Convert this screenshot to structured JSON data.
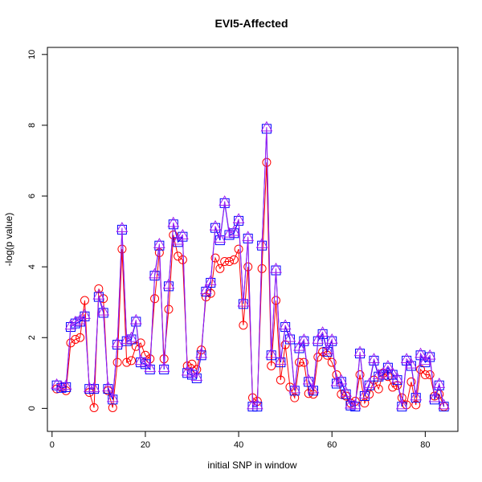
{
  "chart_data": {
    "type": "line",
    "title": "EVI5-Affected",
    "xlabel": "initial SNP in window",
    "ylabel": "-log(p value)",
    "xlim": [
      -1,
      87
    ],
    "ylim": [
      -0.65,
      10.2
    ],
    "xticks": [
      "0",
      "20",
      "40",
      "60",
      "80"
    ],
    "yticks": [
      "0",
      "2",
      "4",
      "6",
      "8",
      "10"
    ],
    "grid": false,
    "x": [
      1,
      2,
      3,
      4,
      5,
      6,
      7,
      8,
      9,
      10,
      11,
      12,
      13,
      14,
      15,
      16,
      17,
      18,
      19,
      20,
      21,
      22,
      23,
      24,
      25,
      26,
      27,
      28,
      29,
      30,
      31,
      32,
      33,
      34,
      35,
      36,
      37,
      38,
      39,
      40,
      41,
      42,
      43,
      44,
      45,
      46,
      47,
      48,
      49,
      50,
      51,
      52,
      53,
      54,
      55,
      56,
      57,
      58,
      59,
      60,
      61,
      62,
      63,
      64,
      65,
      66,
      67,
      68,
      69,
      70,
      71,
      72,
      73,
      74,
      75,
      76,
      77,
      78,
      79,
      80,
      81,
      82,
      83,
      84
    ],
    "series": [
      {
        "color": "#ff0000",
        "marker": "circle",
        "values": [
          0.55,
          0.6,
          0.5,
          1.85,
          1.95,
          2.0,
          3.05,
          0.45,
          0.02,
          3.38,
          3.1,
          0.5,
          0.02,
          1.3,
          4.5,
          1.3,
          1.35,
          1.75,
          1.85,
          1.5,
          1.4,
          3.1,
          4.4,
          1.4,
          2.8,
          4.9,
          4.3,
          4.2,
          1.2,
          1.25,
          1.1,
          1.65,
          3.15,
          3.25,
          4.25,
          3.95,
          4.15,
          4.15,
          4.2,
          4.5,
          2.35,
          4.0,
          0.3,
          0.2,
          3.95,
          6.95,
          1.2,
          3.05,
          0.8,
          1.8,
          0.6,
          0.3,
          1.3,
          1.3,
          0.42,
          0.4,
          1.45,
          1.6,
          1.5,
          1.3,
          0.95,
          0.4,
          0.35,
          0.15,
          0.2,
          0.95,
          0.15,
          0.4,
          0.8,
          0.55,
          1.0,
          0.9,
          0.6,
          0.65,
          0.3,
          0.1,
          0.75,
          0.1,
          1.1,
          0.95,
          0.95,
          0.35,
          0.4,
          0.05
        ]
      },
      {
        "color": "#0000ff",
        "marker": "square",
        "values": [
          0.65,
          0.58,
          0.6,
          2.3,
          2.4,
          2.45,
          2.6,
          0.55,
          0.55,
          3.15,
          2.7,
          0.55,
          0.25,
          1.8,
          5.05,
          1.9,
          1.95,
          2.45,
          1.3,
          1.25,
          1.1,
          3.75,
          4.6,
          1.1,
          3.45,
          5.2,
          4.7,
          4.85,
          1.0,
          0.95,
          0.85,
          1.5,
          3.3,
          3.55,
          5.1,
          4.75,
          5.8,
          4.9,
          4.95,
          5.3,
          2.95,
          4.8,
          0.05,
          0.05,
          4.6,
          7.9,
          1.5,
          3.9,
          1.3,
          2.3,
          1.95,
          0.5,
          1.7,
          1.9,
          0.75,
          0.5,
          1.9,
          2.1,
          1.6,
          1.9,
          0.7,
          0.75,
          0.4,
          0.08,
          0.05,
          1.55,
          0.35,
          0.65,
          1.35,
          0.9,
          0.95,
          1.15,
          0.95,
          0.8,
          0.05,
          1.35,
          1.2,
          0.3,
          1.5,
          1.3,
          1.45,
          0.25,
          0.65,
          0.05
        ]
      },
      {
        "color": "#a020f0",
        "marker": "triangle",
        "values": [
          0.68,
          0.62,
          0.65,
          2.35,
          2.45,
          2.5,
          2.65,
          0.58,
          0.58,
          3.2,
          2.75,
          0.6,
          0.3,
          1.85,
          5.1,
          1.95,
          2.0,
          2.5,
          1.35,
          1.3,
          1.15,
          3.8,
          4.65,
          1.15,
          3.5,
          5.25,
          4.75,
          4.9,
          1.05,
          1.0,
          0.9,
          1.55,
          3.35,
          3.6,
          5.15,
          4.8,
          5.85,
          4.95,
          5.0,
          5.35,
          3.0,
          4.85,
          0.1,
          0.1,
          4.65,
          7.95,
          1.55,
          3.95,
          1.35,
          2.35,
          2.0,
          0.55,
          1.75,
          1.95,
          0.8,
          0.55,
          1.95,
          2.15,
          1.65,
          1.95,
          0.75,
          0.8,
          0.45,
          0.12,
          0.1,
          1.6,
          0.4,
          0.7,
          1.4,
          0.95,
          1.0,
          1.2,
          1.0,
          0.85,
          0.1,
          1.4,
          1.25,
          0.35,
          1.55,
          1.35,
          1.5,
          0.3,
          0.7,
          0.1
        ]
      }
    ]
  }
}
